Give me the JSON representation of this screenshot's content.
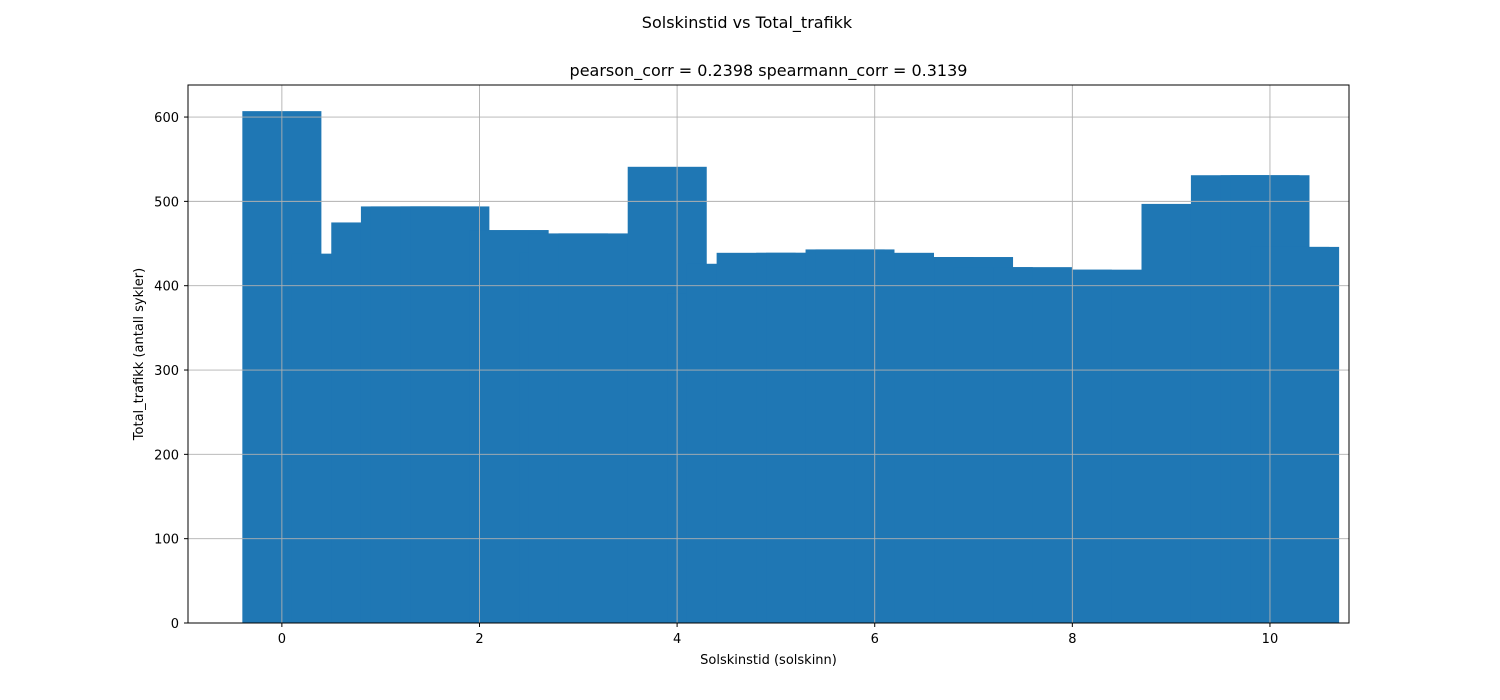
{
  "figure": {
    "suptitle": "Solskinstid vs Total_trafikk"
  },
  "chart_data": {
    "type": "bar",
    "title": "pearson_corr = 0.2398 spearmann_corr = 0.3139",
    "xlabel": "Solskinstid (solskinn)",
    "ylabel": "Total_trafikk (antall sykler)",
    "xlim": [
      -0.95,
      10.8
    ],
    "ylim": [
      0,
      638
    ],
    "xticks": [
      0,
      2,
      4,
      6,
      8,
      10
    ],
    "yticks": [
      0,
      100,
      200,
      300,
      400,
      500,
      600
    ],
    "grid": true,
    "bar_width": 0.8,
    "color": "#1f77b4",
    "x": [
      0,
      0.5,
      0.9,
      1.2,
      1.3,
      1.6,
      1.7,
      2.3,
      2.8,
      2.9,
      3.2,
      3.9,
      4.3,
      4.5,
      4.8,
      5.2,
      5.3,
      5.7,
      5.8,
      6.2,
      6.6,
      7.0,
      7.2,
      7.6,
      8.0,
      8.4,
      8.8,
      9.1,
      9.6,
      9.9,
      10.0,
      10.2,
      10.3
    ],
    "values": [
      607,
      438,
      475,
      494,
      494,
      494,
      494,
      466,
      439,
      462,
      462,
      541,
      391,
      426,
      439,
      439,
      439,
      443,
      443,
      439,
      434,
      434,
      422,
      422,
      419,
      419,
      405,
      497,
      531,
      531,
      531,
      446,
      446
    ]
  }
}
